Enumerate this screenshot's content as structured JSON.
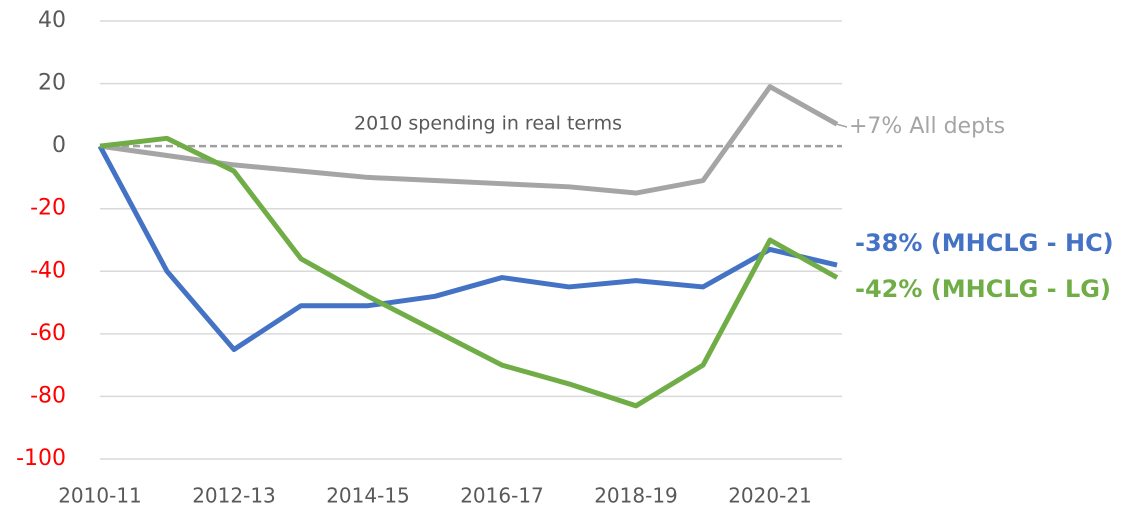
{
  "chart_data": {
    "type": "line",
    "categories": [
      "2010-11",
      null,
      "2012-13",
      null,
      "2014-15",
      null,
      "2016-17",
      null,
      "2018-19",
      null,
      "2020-21",
      null
    ],
    "series": [
      {
        "name": "+7% All depts",
        "color": "#a5a5a5",
        "values": [
          0,
          -3,
          -6,
          -8,
          -10,
          -11,
          -12,
          -13,
          -15,
          -11,
          19,
          7
        ]
      },
      {
        "name": "-38% (MHCLG - HC)",
        "color": "#4472c4",
        "values": [
          0,
          -40,
          -65,
          -51,
          -51,
          -48,
          -42,
          -45,
          -43,
          -45,
          -33,
          -38
        ]
      },
      {
        "name": "-42% (MHCLG - LG)",
        "color": "#70ad47",
        "values": [
          0,
          2.5,
          -8,
          -36,
          -48,
          -59,
          -70,
          -76,
          -83,
          -70,
          -30,
          -42
        ]
      }
    ],
    "ylim": [
      -100,
      40
    ],
    "yticks": [
      -100,
      -80,
      -60,
      -40,
      -20,
      0,
      20,
      40
    ],
    "grid": true,
    "negative_tick_color": "#ff0000",
    "tick_color": "#595959",
    "reference_line": {
      "value": 0,
      "label": "2010 spending in real terms"
    }
  }
}
